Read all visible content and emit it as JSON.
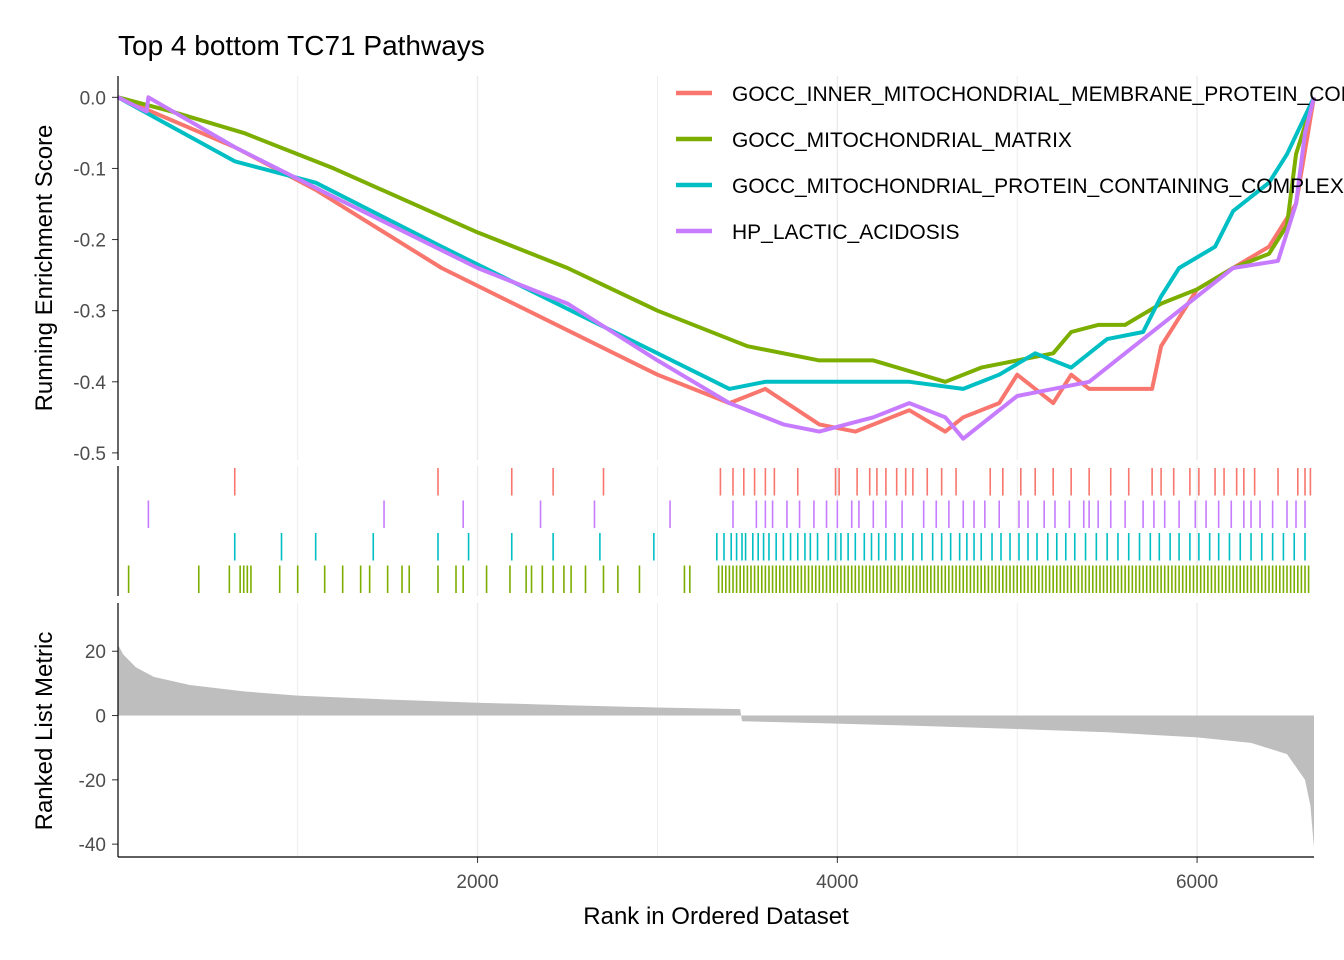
{
  "chart_data": {
    "type": "line",
    "title": "Top 4 bottom TC71 Pathways",
    "xlabel": "Rank in Ordered Dataset",
    "xlim": [
      1,
      6650
    ],
    "x_ticks": [
      2000,
      4000,
      6000
    ],
    "x_tick_labels": [
      "2000",
      "4000",
      "6000"
    ],
    "grid": true,
    "legend_position": "top-right",
    "colors": {
      "GOCC_INNER_MITOCHONDRIAL_MEMBRANE_PROTEIN_COMPLEX": "#F8766D",
      "GOCC_MITOCHONDRIAL_MATRIX": "#7CAE00",
      "GOCC_MITOCHONDRIAL_PROTEIN_CONTAINING_COMPLEX": "#00BFC4",
      "HP_LACTIC_ACIDOSIS": "#C77CFF",
      "metric_fill": "#BEBEBE"
    },
    "enrichment": {
      "ylabel": "Running Enrichment Score",
      "ylim": [
        -0.51,
        0.03
      ],
      "y_ticks": [
        0.0,
        -0.1,
        -0.2,
        -0.3,
        -0.4,
        -0.5
      ],
      "y_tick_labels": [
        "0.0",
        "-0.1",
        "-0.2",
        "-0.3",
        "-0.4",
        "-0.5"
      ],
      "series": [
        {
          "name": "GOCC_INNER_MITOCHONDRIAL_MEMBRANE_PROTEIN_COMPLEX",
          "color": "#F8766D",
          "legend_label": "GOCC_INNER_MITOCHONDRIAL_MEMBRANE_PROTEIN_COMPLEX",
          "points": [
            [
              1,
              0.0
            ],
            [
              650,
              -0.07
            ],
            [
              1100,
              -0.13
            ],
            [
              1800,
              -0.24
            ],
            [
              2200,
              -0.29
            ],
            [
              3000,
              -0.39
            ],
            [
              3400,
              -0.43
            ],
            [
              3600,
              -0.41
            ],
            [
              3900,
              -0.46
            ],
            [
              4100,
              -0.47
            ],
            [
              4400,
              -0.44
            ],
            [
              4600,
              -0.47
            ],
            [
              4700,
              -0.45
            ],
            [
              4900,
              -0.43
            ],
            [
              5000,
              -0.39
            ],
            [
              5200,
              -0.43
            ],
            [
              5300,
              -0.39
            ],
            [
              5400,
              -0.41
            ],
            [
              5750,
              -0.41
            ],
            [
              5800,
              -0.35
            ],
            [
              6000,
              -0.27
            ],
            [
              6200,
              -0.24
            ],
            [
              6400,
              -0.21
            ],
            [
              6550,
              -0.15
            ],
            [
              6650,
              0.0
            ]
          ]
        },
        {
          "name": "GOCC_MITOCHONDRIAL_MATRIX",
          "color": "#7CAE00",
          "legend_label": "GOCC_MITOCHONDRIAL_MATRIX",
          "points": [
            [
              1,
              0.0
            ],
            [
              300,
              -0.02
            ],
            [
              700,
              -0.05
            ],
            [
              1200,
              -0.1
            ],
            [
              2000,
              -0.19
            ],
            [
              2500,
              -0.24
            ],
            [
              3000,
              -0.3
            ],
            [
              3500,
              -0.35
            ],
            [
              3900,
              -0.37
            ],
            [
              4200,
              -0.37
            ],
            [
              4600,
              -0.4
            ],
            [
              4800,
              -0.38
            ],
            [
              5000,
              -0.37
            ],
            [
              5200,
              -0.36
            ],
            [
              5300,
              -0.33
            ],
            [
              5450,
              -0.32
            ],
            [
              5600,
              -0.32
            ],
            [
              5800,
              -0.29
            ],
            [
              6000,
              -0.27
            ],
            [
              6200,
              -0.24
            ],
            [
              6400,
              -0.22
            ],
            [
              6500,
              -0.18
            ],
            [
              6550,
              -0.08
            ],
            [
              6650,
              0.0
            ]
          ]
        },
        {
          "name": "GOCC_MITOCHONDRIAL_PROTEIN_CONTAINING_COMPLEX",
          "color": "#00BFC4",
          "legend_label": "GOCC_MITOCHONDRIAL_PROTEIN_CONTAINING_COMPLEX",
          "points": [
            [
              1,
              0.0
            ],
            [
              650,
              -0.09
            ],
            [
              1100,
              -0.12
            ],
            [
              1800,
              -0.21
            ],
            [
              2200,
              -0.26
            ],
            [
              3000,
              -0.36
            ],
            [
              3400,
              -0.41
            ],
            [
              3600,
              -0.4
            ],
            [
              4000,
              -0.4
            ],
            [
              4400,
              -0.4
            ],
            [
              4700,
              -0.41
            ],
            [
              4900,
              -0.39
            ],
            [
              5100,
              -0.36
            ],
            [
              5300,
              -0.38
            ],
            [
              5500,
              -0.34
            ],
            [
              5700,
              -0.33
            ],
            [
              5800,
              -0.28
            ],
            [
              5900,
              -0.24
            ],
            [
              6100,
              -0.21
            ],
            [
              6200,
              -0.16
            ],
            [
              6400,
              -0.12
            ],
            [
              6500,
              -0.08
            ],
            [
              6650,
              0.0
            ]
          ]
        },
        {
          "name": "HP_LACTIC_ACIDOSIS",
          "color": "#C77CFF",
          "legend_label": "HP_LACTIC_ACIDOSIS",
          "points": [
            [
              1,
              0.0
            ],
            [
              160,
              -0.02
            ],
            [
              170,
              0.0
            ],
            [
              650,
              -0.07
            ],
            [
              1200,
              -0.14
            ],
            [
              2000,
              -0.24
            ],
            [
              2500,
              -0.29
            ],
            [
              3000,
              -0.37
            ],
            [
              3400,
              -0.43
            ],
            [
              3700,
              -0.46
            ],
            [
              3900,
              -0.47
            ],
            [
              4200,
              -0.45
            ],
            [
              4400,
              -0.43
            ],
            [
              4600,
              -0.45
            ],
            [
              4700,
              -0.48
            ],
            [
              4900,
              -0.44
            ],
            [
              5000,
              -0.42
            ],
            [
              5200,
              -0.41
            ],
            [
              5400,
              -0.4
            ],
            [
              5600,
              -0.36
            ],
            [
              5800,
              -0.32
            ],
            [
              6000,
              -0.28
            ],
            [
              6200,
              -0.24
            ],
            [
              6450,
              -0.23
            ],
            [
              6550,
              -0.15
            ],
            [
              6600,
              -0.05
            ],
            [
              6650,
              0.0
            ]
          ]
        }
      ]
    },
    "hits": {
      "rows": [
        {
          "series": "GOCC_INNER_MITOCHONDRIAL_MEMBRANE_PROTEIN_COMPLEX",
          "color": "#F8766D",
          "positions": [
            650,
            1780,
            2190,
            2420,
            2700,
            3350,
            3420,
            3480,
            3540,
            3600,
            3650,
            3780,
            3990,
            4010,
            4110,
            4180,
            4220,
            4270,
            4330,
            4380,
            4420,
            4500,
            4580,
            4660,
            4850,
            4920,
            5020,
            5100,
            5200,
            5300,
            5400,
            5520,
            5620,
            5750,
            5800,
            5870,
            5960,
            6010,
            6100,
            6150,
            6220,
            6260,
            6320,
            6450,
            6560,
            6600,
            6630
          ]
        },
        {
          "series": "HP_LACTIC_ACIDOSIS",
          "color": "#C77CFF",
          "positions": [
            170,
            1480,
            1920,
            2350,
            2650,
            3070,
            3420,
            3550,
            3600,
            3640,
            3720,
            3790,
            3870,
            3940,
            4000,
            4080,
            4120,
            4200,
            4270,
            4360,
            4480,
            4550,
            4620,
            4700,
            4760,
            4820,
            4900,
            5010,
            5060,
            5150,
            5210,
            5290,
            5370,
            5400,
            5450,
            5520,
            5600,
            5700,
            5760,
            5820,
            5900,
            5990,
            6050,
            6120,
            6190,
            6260,
            6300,
            6350,
            6420,
            6500,
            6550,
            6600
          ]
        },
        {
          "series": "GOCC_MITOCHONDRIAL_PROTEIN_CONTAINING_COMPLEX",
          "color": "#00BFC4",
          "positions": [
            650,
            910,
            1100,
            1420,
            1780,
            1950,
            2190,
            2420,
            2680,
            2980,
            3330,
            3370,
            3410,
            3440,
            3470,
            3490,
            3530,
            3560,
            3590,
            3620,
            3660,
            3700,
            3740,
            3780,
            3820,
            3850,
            3890,
            3950,
            3990,
            4020,
            4060,
            4100,
            4150,
            4190,
            4230,
            4270,
            4320,
            4360,
            4420,
            4470,
            4530,
            4580,
            4630,
            4680,
            4720,
            4760,
            4800,
            4860,
            4910,
            4960,
            5010,
            5060,
            5110,
            5170,
            5220,
            5270,
            5320,
            5380,
            5440,
            5500,
            5560,
            5620,
            5680,
            5740,
            5790,
            5850,
            5900,
            5960,
            6010,
            6070,
            6120,
            6180,
            6240,
            6300,
            6360,
            6420,
            6480,
            6540,
            6600
          ]
        },
        {
          "series": "GOCC_MITOCHONDRIAL_MATRIX",
          "color": "#7CAE00",
          "positions": [
            60,
            450,
            620,
            680,
            700,
            720,
            740,
            900,
            1000,
            1150,
            1250,
            1350,
            1400,
            1500,
            1580,
            1620,
            1780,
            1880,
            1920,
            2050,
            2180,
            2270,
            2300,
            2360,
            2420,
            2480,
            2520,
            2600,
            2700,
            2780,
            2900,
            3150,
            3180,
            3340,
            3360,
            3380,
            3400,
            3420,
            3440,
            3460,
            3480,
            3500,
            3520,
            3540,
            3560,
            3580,
            3600,
            3620,
            3640,
            3660,
            3680,
            3700,
            3720,
            3740,
            3760,
            3780,
            3800,
            3820,
            3840,
            3860,
            3880,
            3900,
            3920,
            3940,
            3960,
            3980,
            4000,
            4020,
            4040,
            4060,
            4080,
            4100,
            4120,
            4140,
            4160,
            4180,
            4200,
            4220,
            4240,
            4260,
            4280,
            4300,
            4320,
            4340,
            4360,
            4380,
            4400,
            4420,
            4440,
            4460,
            4480,
            4500,
            4520,
            4540,
            4560,
            4580,
            4600,
            4620,
            4640,
            4660,
            4680,
            4700,
            4720,
            4740,
            4760,
            4780,
            4800,
            4820,
            4840,
            4860,
            4880,
            4900,
            4920,
            4940,
            4960,
            4980,
            5000,
            5020,
            5040,
            5060,
            5080,
            5100,
            5120,
            5140,
            5160,
            5180,
            5200,
            5220,
            5240,
            5260,
            5280,
            5300,
            5320,
            5340,
            5360,
            5380,
            5400,
            5420,
            5440,
            5460,
            5480,
            5500,
            5520,
            5540,
            5560,
            5580,
            5600,
            5620,
            5640,
            5660,
            5680,
            5700,
            5720,
            5740,
            5760,
            5780,
            5800,
            5820,
            5840,
            5860,
            5880,
            5900,
            5920,
            5940,
            5960,
            5980,
            6000,
            6020,
            6040,
            6060,
            6080,
            6100,
            6120,
            6140,
            6160,
            6180,
            6200,
            6220,
            6240,
            6260,
            6280,
            6300,
            6320,
            6340,
            6360,
            6380,
            6400,
            6420,
            6440,
            6460,
            6480,
            6500,
            6520,
            6540,
            6560,
            6580,
            6600,
            6620
          ]
        }
      ]
    },
    "metric": {
      "ylabel": "Ranked List Metric",
      "ylim": [
        -44,
        35
      ],
      "y_ticks": [
        20,
        0,
        -20,
        -40
      ],
      "y_tick_labels": [
        "20",
        "0",
        "-20",
        "-40"
      ],
      "points": [
        [
          1,
          22
        ],
        [
          30,
          19
        ],
        [
          100,
          15
        ],
        [
          200,
          12
        ],
        [
          400,
          9.5
        ],
        [
          700,
          7.5
        ],
        [
          1000,
          6.2
        ],
        [
          1500,
          5.0
        ],
        [
          2000,
          4.0
        ],
        [
          2500,
          3.2
        ],
        [
          3000,
          2.5
        ],
        [
          3460,
          2.0
        ],
        [
          3470,
          -1.8
        ],
        [
          4000,
          -2.5
        ],
        [
          4500,
          -3.3
        ],
        [
          5000,
          -4.2
        ],
        [
          5500,
          -5.2
        ],
        [
          6000,
          -6.8
        ],
        [
          6300,
          -8.5
        ],
        [
          6500,
          -12
        ],
        [
          6600,
          -20
        ],
        [
          6630,
          -28
        ],
        [
          6650,
          -41
        ]
      ]
    }
  }
}
